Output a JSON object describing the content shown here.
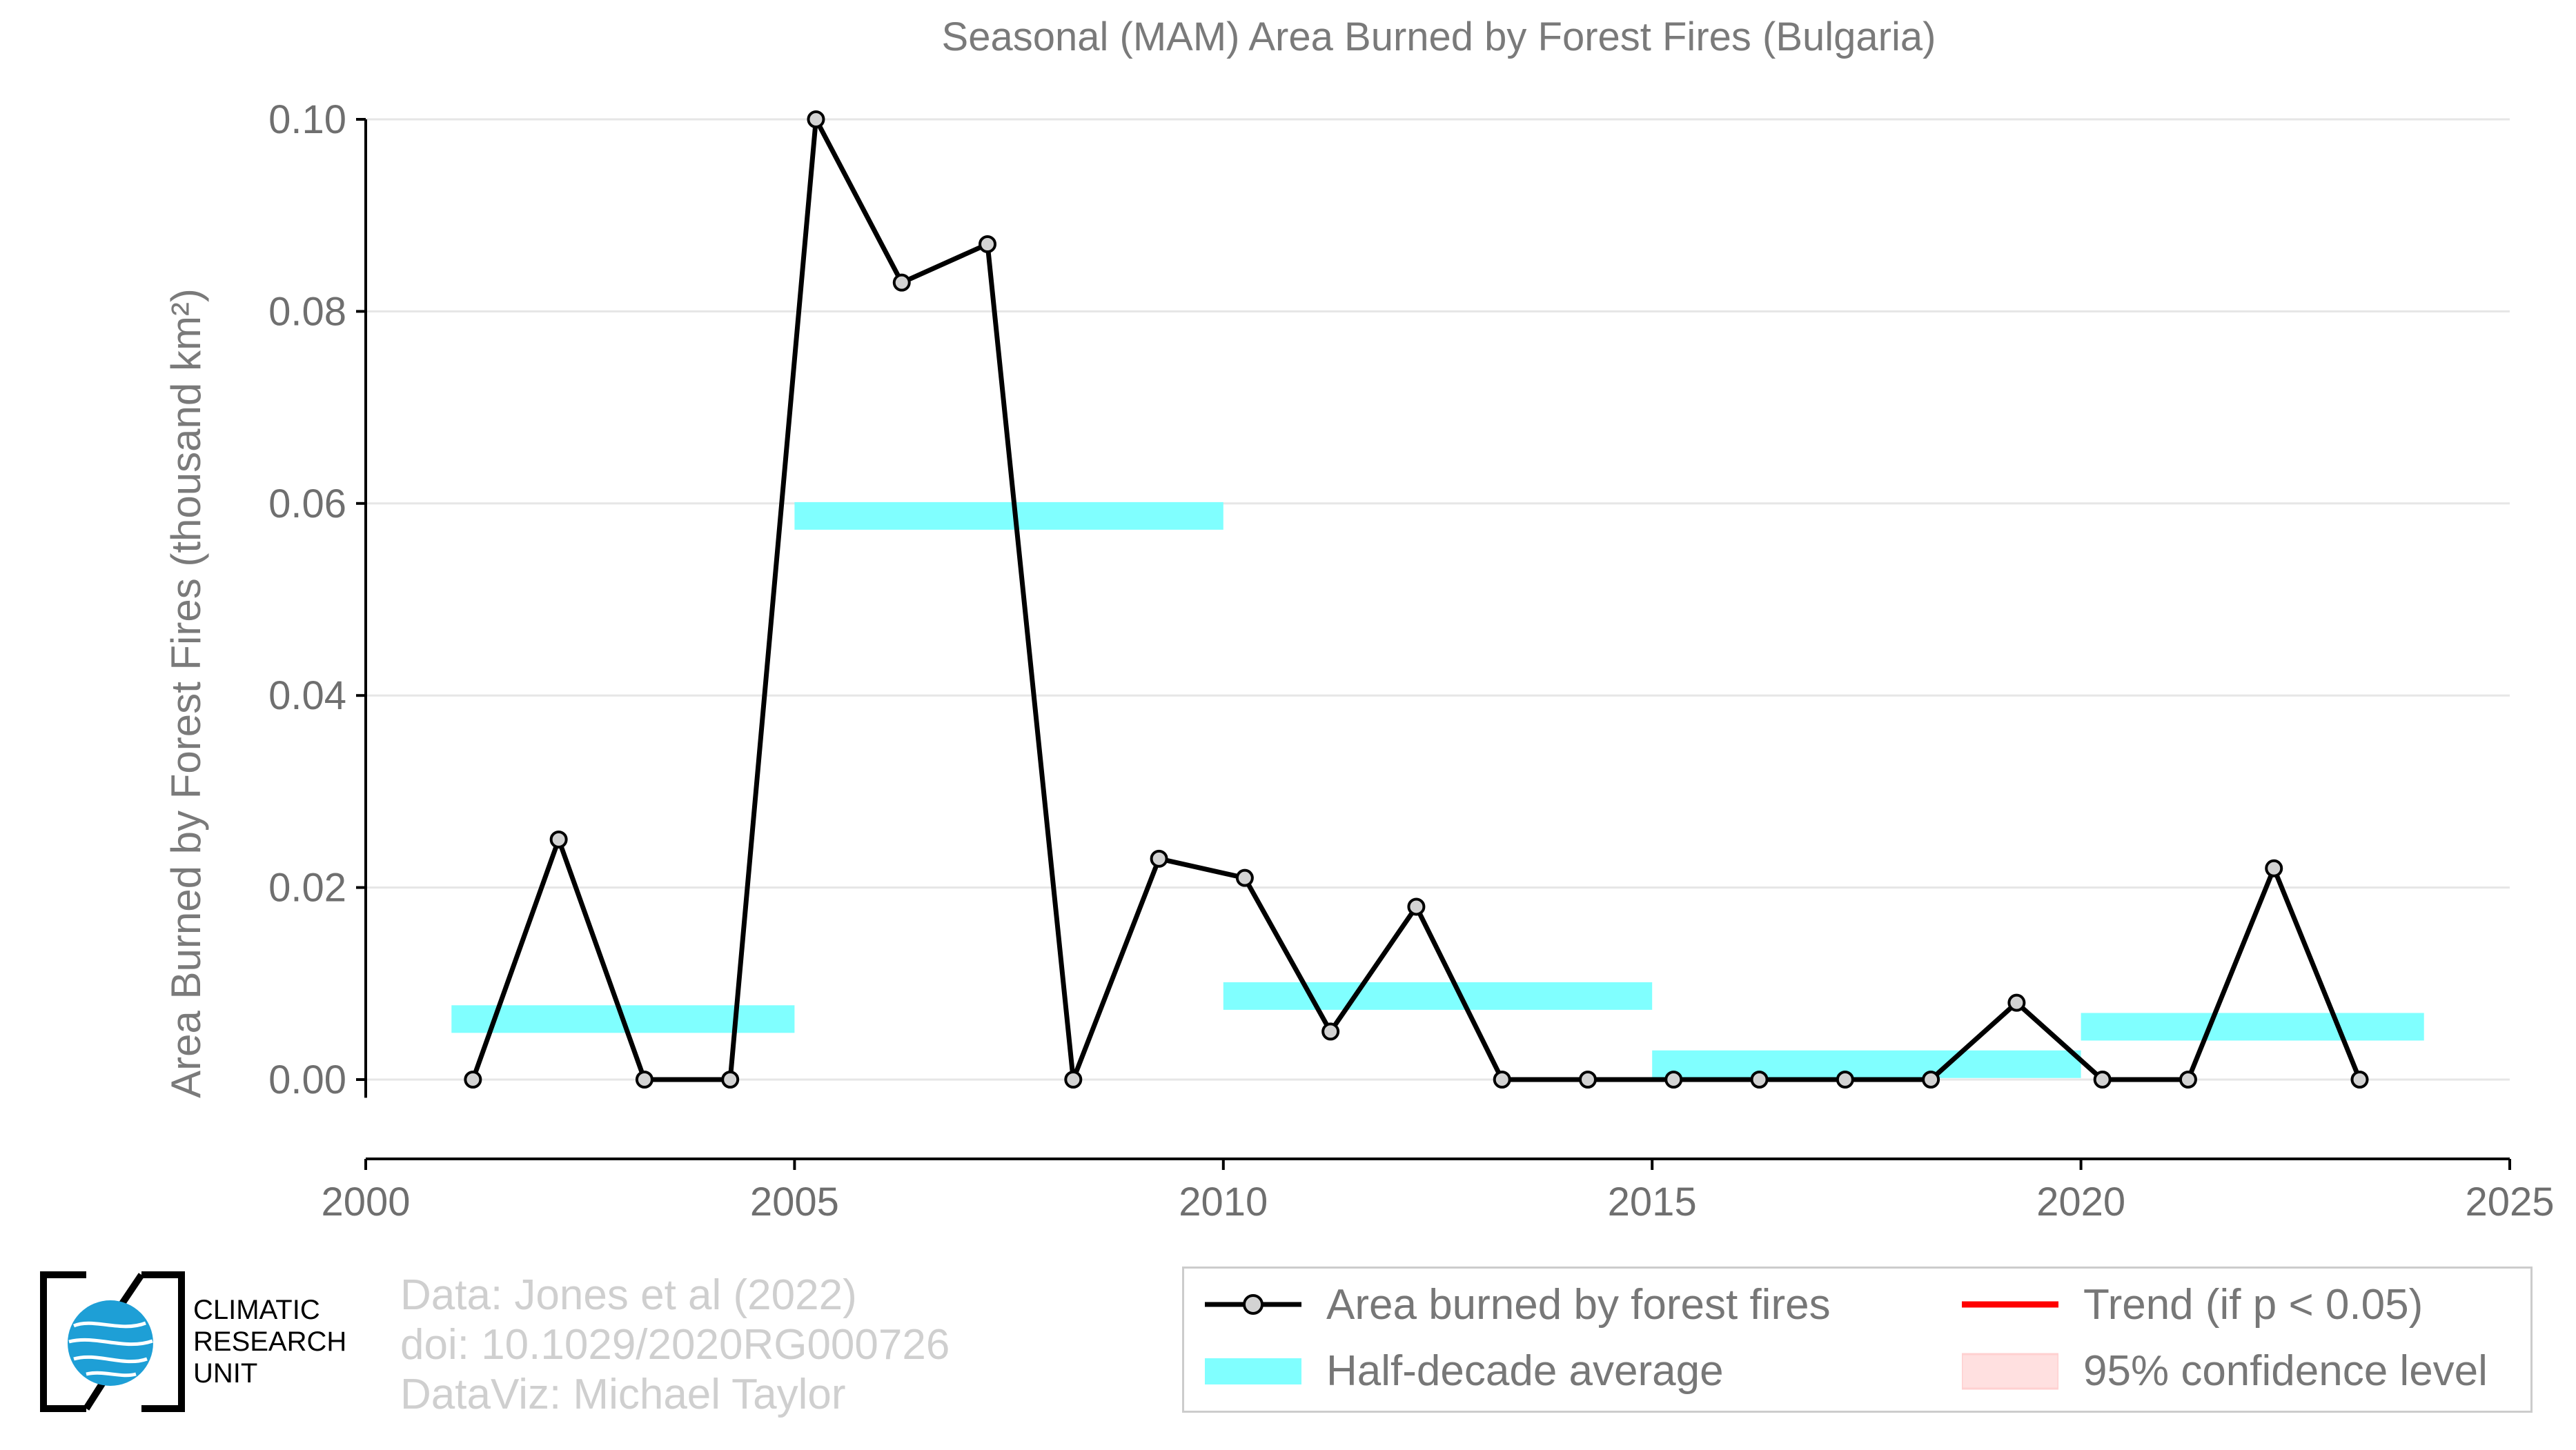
{
  "chart_data": {
    "type": "line",
    "title": "Seasonal (MAM) Area Burned by Forest Fires (Bulgaria)",
    "xlabel": "",
    "ylabel": "Area Burned by Forest Fires (thousand km²)",
    "xlim": [
      2000,
      2025
    ],
    "ylim": [
      -0.008,
      0.1
    ],
    "x_ticks": [
      2000,
      2005,
      2010,
      2015,
      2020,
      2025
    ],
    "y_ticks": [
      0.0,
      0.02,
      0.04,
      0.06,
      0.08,
      0.1
    ],
    "y_tick_labels": [
      "0.00",
      "0.02",
      "0.04",
      "0.06",
      "0.08",
      "0.10"
    ],
    "grid": "horizontal",
    "series": [
      {
        "name": "Area burned by forest fires",
        "color": "#000000",
        "marker_fill": "#d3d3d3",
        "x": [
          2001.25,
          2002.25,
          2003.25,
          2004.25,
          2005.25,
          2006.25,
          2007.25,
          2008.25,
          2009.25,
          2010.25,
          2011.25,
          2012.25,
          2013.25,
          2014.25,
          2015.25,
          2016.25,
          2017.25,
          2018.25,
          2019.25,
          2020.25,
          2021.25,
          2022.25,
          2023.25
        ],
        "values": [
          0.0,
          0.025,
          0.0,
          0.0,
          0.1,
          0.083,
          0.087,
          0.0,
          0.023,
          0.021,
          0.005,
          0.018,
          0.0,
          0.0,
          0.0,
          0.0,
          0.0,
          0.0,
          0.008,
          0.0,
          0.0,
          0.022,
          0.0
        ]
      }
    ],
    "half_decade_average": {
      "name": "Half-decade average",
      "color": "#80ffff",
      "segments": [
        {
          "x_start": 2001,
          "x_end": 2005,
          "value": 0.0063
        },
        {
          "x_start": 2005,
          "x_end": 2010,
          "value": 0.0587
        },
        {
          "x_start": 2010,
          "x_end": 2015,
          "value": 0.0087
        },
        {
          "x_start": 2015,
          "x_end": 2020,
          "value": 0.0016
        },
        {
          "x_start": 2020,
          "x_end": 2024,
          "value": 0.0055
        }
      ]
    },
    "legend": {
      "placement": "bottom-right",
      "entries": [
        {
          "label": "Area burned by forest fires",
          "kind": "line-marker",
          "color": "#000000"
        },
        {
          "label": "Trend (if p < 0.05)",
          "kind": "line",
          "color": "#ff0000"
        },
        {
          "label": "Half-decade average",
          "kind": "band",
          "color": "#80ffff"
        },
        {
          "label": "95% confidence level",
          "kind": "band",
          "color": "#ffe0e0"
        }
      ]
    }
  },
  "credits": {
    "line1": "Data: Jones et al (2022)",
    "line2": "doi: 10.1029/2020RG000726",
    "line3": "DataViz: Michael Taylor"
  },
  "logo": {
    "line1": "CLIMATIC",
    "line2": "RESEARCH",
    "line3": "UNIT",
    "globe_color": "#1e9fd6"
  }
}
